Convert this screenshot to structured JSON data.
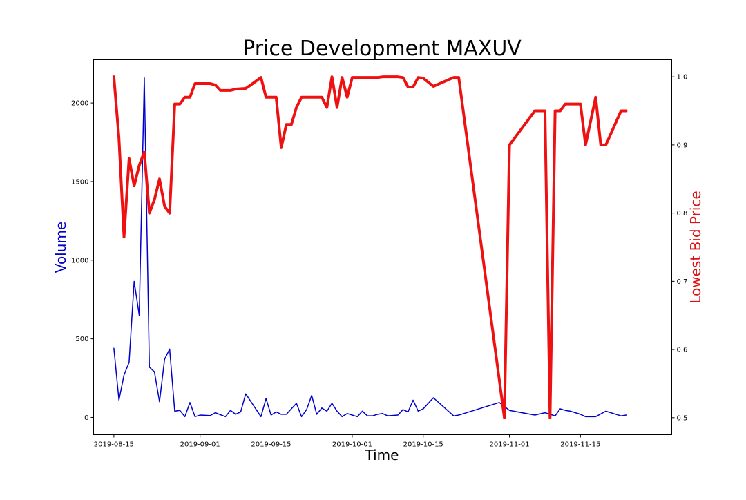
{
  "chart_data": {
    "type": "line",
    "title": "Price Development MAXUV",
    "xlabel": "Time",
    "ylabel_left": "Volume",
    "ylabel_right": "Lowest Bid Price",
    "xlim": [
      "2019-08-11",
      "2019-12-03"
    ],
    "ylim_left": [
      -110,
      2275
    ],
    "ylim_right": [
      0.475,
      1.025
    ],
    "grid": false,
    "x_ticks": [
      "2019-08-15",
      "2019-09-01",
      "2019-09-15",
      "2019-10-01",
      "2019-10-15",
      "2019-11-01",
      "2019-11-15"
    ],
    "y_ticks_left": [
      0,
      500,
      1000,
      1500,
      2000
    ],
    "y_ticks_right": [
      0.5,
      0.6,
      0.7,
      0.8,
      0.9,
      1.0
    ],
    "colors": {
      "volume": "#0000cc",
      "price": "#ee1111",
      "volume_label": "#0000cc",
      "price_label": "#dd1111"
    },
    "series": [
      {
        "axis": "left",
        "values": [
          [
            "2019-08-15",
            440
          ],
          [
            "2019-08-16",
            110
          ],
          [
            "2019-08-17",
            270
          ],
          [
            "2019-08-18",
            350
          ],
          [
            "2019-08-19",
            865
          ],
          [
            "2019-08-20",
            650
          ],
          [
            "2019-08-21",
            2160
          ],
          [
            "2019-08-22",
            320
          ],
          [
            "2019-08-23",
            290
          ],
          [
            "2019-08-24",
            100
          ],
          [
            "2019-08-25",
            370
          ],
          [
            "2019-08-26",
            435
          ],
          [
            "2019-08-27",
            40
          ],
          [
            "2019-08-28",
            45
          ],
          [
            "2019-08-29",
            5
          ],
          [
            "2019-08-30",
            95
          ],
          [
            "2019-08-31",
            5
          ],
          [
            "2019-09-01",
            15
          ],
          [
            "2019-09-03",
            12
          ],
          [
            "2019-09-04",
            30
          ],
          [
            "2019-09-06",
            5
          ],
          [
            "2019-09-07",
            45
          ],
          [
            "2019-09-08",
            20
          ],
          [
            "2019-09-09",
            35
          ],
          [
            "2019-09-10",
            150
          ],
          [
            "2019-09-13",
            5
          ],
          [
            "2019-09-14",
            120
          ],
          [
            "2019-09-15",
            15
          ],
          [
            "2019-09-16",
            35
          ],
          [
            "2019-09-17",
            20
          ],
          [
            "2019-09-18",
            20
          ],
          [
            "2019-09-20",
            90
          ],
          [
            "2019-09-21",
            5
          ],
          [
            "2019-09-22",
            50
          ],
          [
            "2019-09-23",
            140
          ],
          [
            "2019-09-24",
            20
          ],
          [
            "2019-09-25",
            60
          ],
          [
            "2019-09-26",
            40
          ],
          [
            "2019-09-27",
            90
          ],
          [
            "2019-09-28",
            40
          ],
          [
            "2019-09-29",
            5
          ],
          [
            "2019-09-30",
            25
          ],
          [
            "2019-10-02",
            5
          ],
          [
            "2019-10-03",
            40
          ],
          [
            "2019-10-04",
            10
          ],
          [
            "2019-10-05",
            10
          ],
          [
            "2019-10-06",
            20
          ],
          [
            "2019-10-07",
            25
          ],
          [
            "2019-10-08",
            10
          ],
          [
            "2019-10-10",
            15
          ],
          [
            "2019-10-11",
            50
          ],
          [
            "2019-10-12",
            35
          ],
          [
            "2019-10-13",
            110
          ],
          [
            "2019-10-14",
            40
          ],
          [
            "2019-10-15",
            55
          ],
          [
            "2019-10-17",
            125
          ],
          [
            "2019-10-21",
            10
          ],
          [
            "2019-10-22",
            15
          ],
          [
            "2019-10-30",
            95
          ],
          [
            "2019-11-01",
            45
          ],
          [
            "2019-11-06",
            15
          ],
          [
            "2019-11-08",
            30
          ],
          [
            "2019-11-09",
            20
          ],
          [
            "2019-11-10",
            10
          ],
          [
            "2019-11-11",
            55
          ],
          [
            "2019-11-12",
            45
          ],
          [
            "2019-11-13",
            40
          ],
          [
            "2019-11-14",
            30
          ],
          [
            "2019-11-15",
            20
          ],
          [
            "2019-11-16",
            5
          ],
          [
            "2019-11-18",
            5
          ],
          [
            "2019-11-20",
            40
          ],
          [
            "2019-11-23",
            10
          ],
          [
            "2019-11-24",
            15
          ]
        ]
      },
      {
        "axis": "right",
        "values": [
          [
            "2019-08-15",
            1.0
          ],
          [
            "2019-08-16",
            0.91
          ],
          [
            "2019-08-17",
            0.765
          ],
          [
            "2019-08-18",
            0.88
          ],
          [
            "2019-08-19",
            0.84
          ],
          [
            "2019-08-20",
            0.87
          ],
          [
            "2019-08-21",
            0.89
          ],
          [
            "2019-08-22",
            0.8
          ],
          [
            "2019-08-23",
            0.82
          ],
          [
            "2019-08-24",
            0.85
          ],
          [
            "2019-08-25",
            0.81
          ],
          [
            "2019-08-26",
            0.8
          ],
          [
            "2019-08-27",
            0.96
          ],
          [
            "2019-08-28",
            0.96
          ],
          [
            "2019-08-29",
            0.97
          ],
          [
            "2019-08-30",
            0.97
          ],
          [
            "2019-08-31",
            0.99
          ],
          [
            "2019-09-03",
            0.99
          ],
          [
            "2019-09-04",
            0.988
          ],
          [
            "2019-09-05",
            0.98
          ],
          [
            "2019-09-07",
            0.98
          ],
          [
            "2019-09-08",
            0.982
          ],
          [
            "2019-09-10",
            0.983
          ],
          [
            "2019-09-11",
            0.988
          ],
          [
            "2019-09-13",
            0.999
          ],
          [
            "2019-09-14",
            0.97
          ],
          [
            "2019-09-16",
            0.97
          ],
          [
            "2019-09-17",
            0.896
          ],
          [
            "2019-09-18",
            0.93
          ],
          [
            "2019-09-19",
            0.93
          ],
          [
            "2019-09-20",
            0.955
          ],
          [
            "2019-09-21",
            0.97
          ],
          [
            "2019-09-22",
            0.97
          ],
          [
            "2019-09-23",
            0.97
          ],
          [
            "2019-09-24",
            0.97
          ],
          [
            "2019-09-25",
            0.97
          ],
          [
            "2019-09-26",
            0.955
          ],
          [
            "2019-09-27",
            1.0
          ],
          [
            "2019-09-28",
            0.955
          ],
          [
            "2019-09-29",
            0.999
          ],
          [
            "2019-09-30",
            0.97
          ],
          [
            "2019-10-01",
            0.999
          ],
          [
            "2019-10-06",
            0.999
          ],
          [
            "2019-10-07",
            1.0
          ],
          [
            "2019-10-10",
            1.0
          ],
          [
            "2019-10-11",
            0.999
          ],
          [
            "2019-10-12",
            0.985
          ],
          [
            "2019-10-13",
            0.985
          ],
          [
            "2019-10-14",
            0.999
          ],
          [
            "2019-10-15",
            0.998
          ],
          [
            "2019-10-17",
            0.986
          ],
          [
            "2019-10-21",
            0.999
          ],
          [
            "2019-10-22",
            0.999
          ],
          [
            "2019-10-31",
            0.5
          ],
          [
            "2019-11-01",
            0.9
          ],
          [
            "2019-11-06",
            0.95
          ],
          [
            "2019-11-08",
            0.95
          ],
          [
            "2019-11-09",
            0.5
          ],
          [
            "2019-11-10",
            0.95
          ],
          [
            "2019-11-11",
            0.95
          ],
          [
            "2019-11-12",
            0.96
          ],
          [
            "2019-11-15",
            0.96
          ],
          [
            "2019-11-16",
            0.9
          ],
          [
            "2019-11-18",
            0.97
          ],
          [
            "2019-11-19",
            0.9
          ],
          [
            "2019-11-20",
            0.9
          ],
          [
            "2019-11-23",
            0.95
          ],
          [
            "2019-11-24",
            0.95
          ]
        ]
      }
    ]
  }
}
